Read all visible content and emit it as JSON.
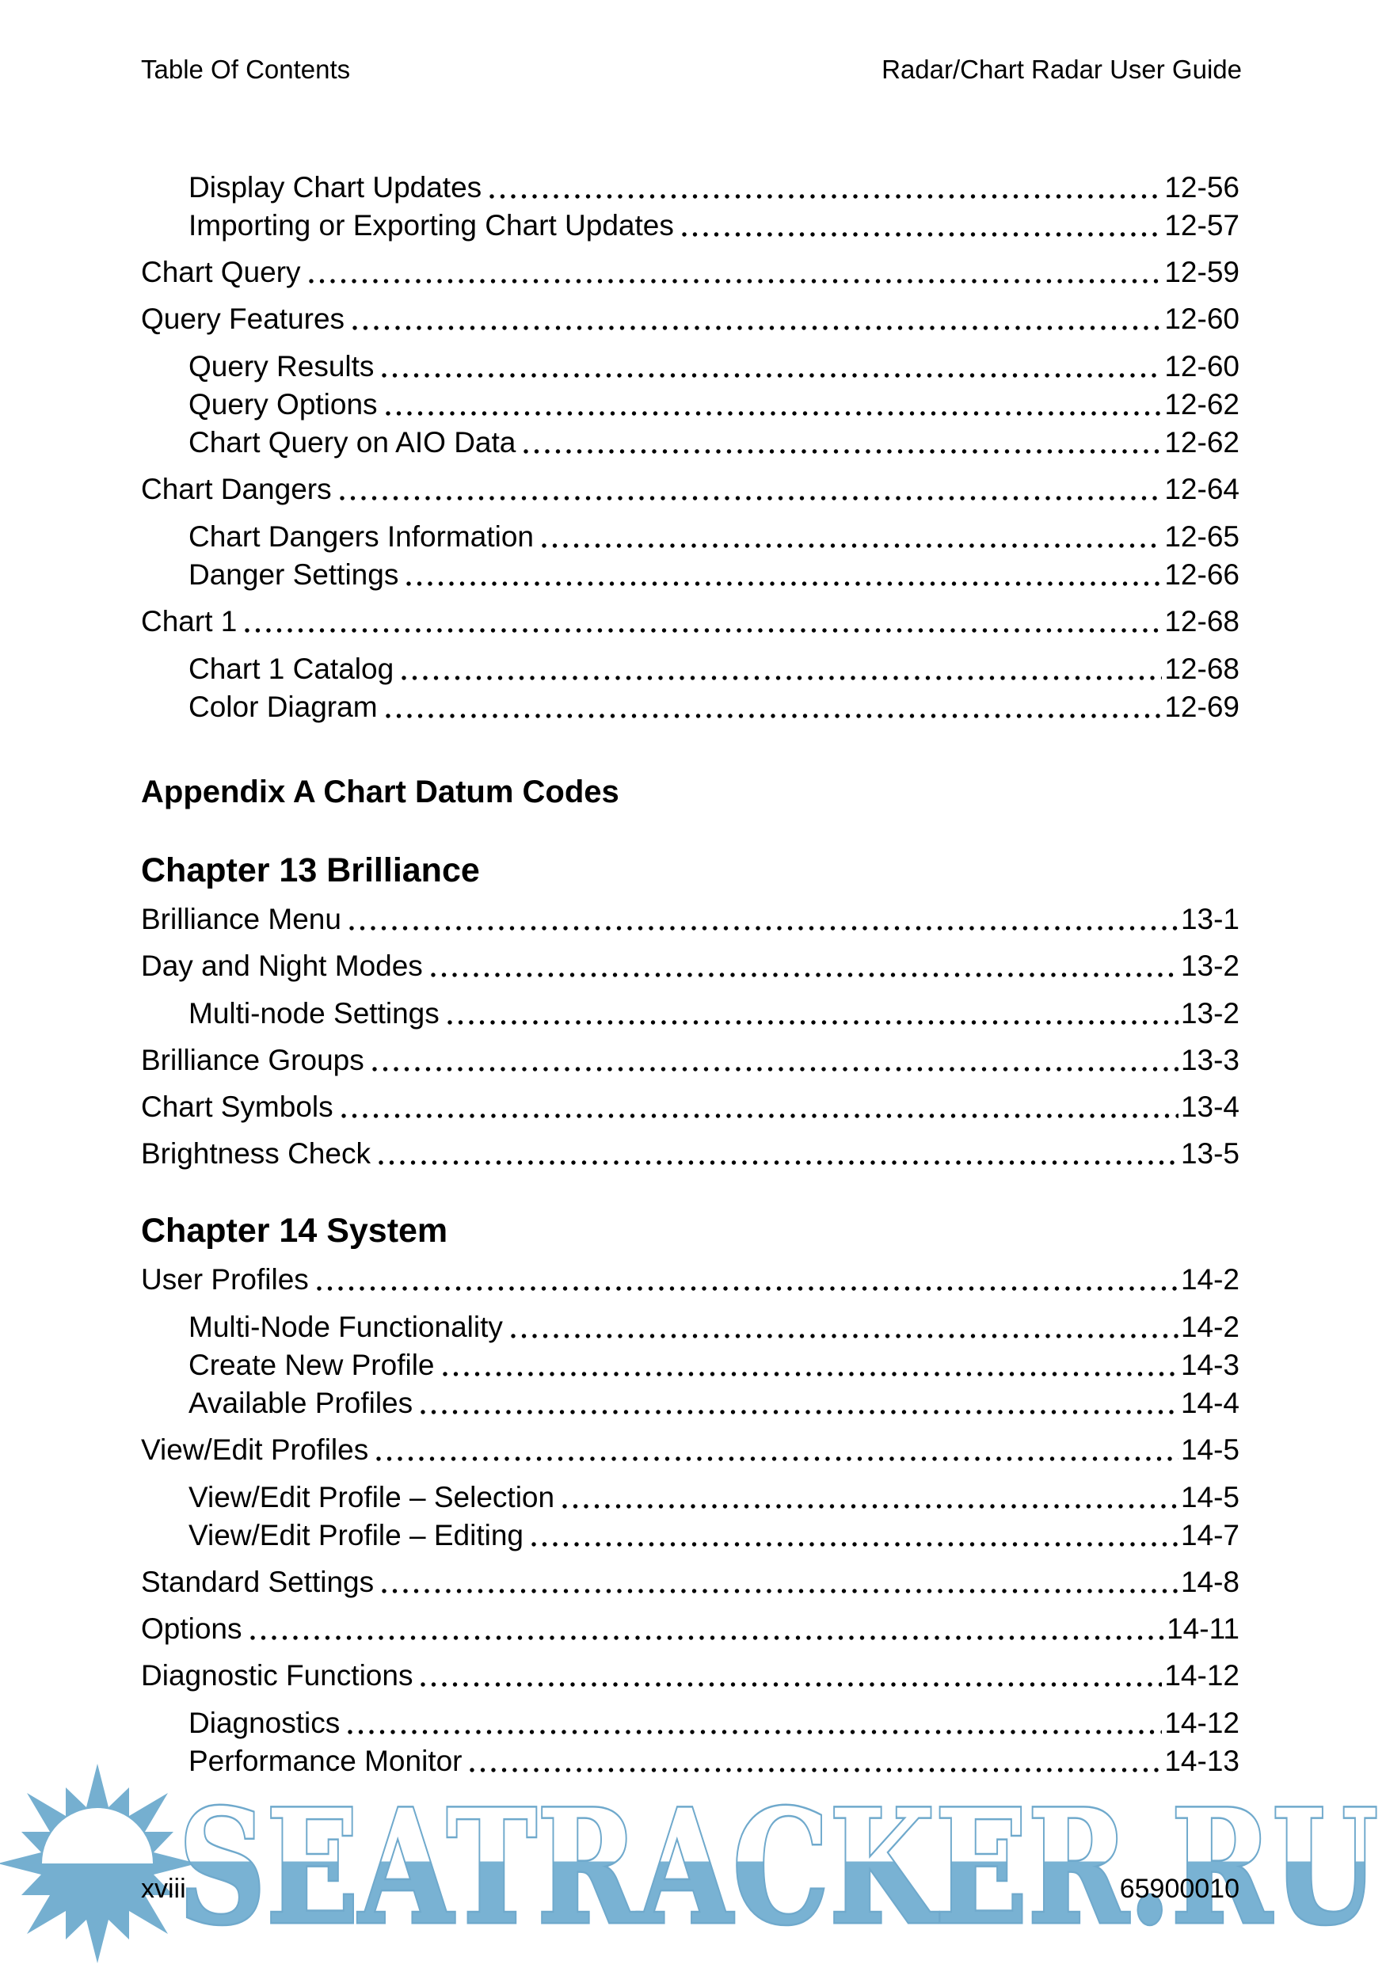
{
  "header": {
    "left": "Table Of Contents",
    "right": "Radar/Chart Radar User Guide"
  },
  "toc": {
    "items": [
      {
        "label": "Display Chart Updates",
        "page": "12-56",
        "level": 2
      },
      {
        "label": "Importing or Exporting Chart Updates",
        "page": "12-57",
        "level": 2
      },
      {
        "label": "Chart Query",
        "page": "12-59",
        "level": 1
      },
      {
        "label": "Query Features",
        "page": "12-60",
        "level": 1
      },
      {
        "label": "Query Results",
        "page": "12-60",
        "level": 2
      },
      {
        "label": "Query Options",
        "page": "12-62",
        "level": 2
      },
      {
        "label": "Chart Query on AIO Data",
        "page": "12-62",
        "level": 2
      },
      {
        "label": "Chart Dangers",
        "page": "12-64",
        "level": 1
      },
      {
        "label": "Chart Dangers Information",
        "page": "12-65",
        "level": 2
      },
      {
        "label": "Danger Settings",
        "page": "12-66",
        "level": 2
      },
      {
        "label": "Chart 1",
        "page": "12-68",
        "level": 1
      },
      {
        "label": "Chart 1 Catalog",
        "page": "12-68",
        "level": 2
      },
      {
        "label": "Color Diagram",
        "page": "12-69",
        "level": 2
      },
      {
        "label": "Appendix A Chart Datum Codes",
        "type": "appendix"
      },
      {
        "label": "Chapter 13 Brilliance",
        "type": "chapter"
      },
      {
        "label": "Brilliance Menu",
        "page": "13-1",
        "level": 1
      },
      {
        "label": "Day and Night Modes",
        "page": "13-2",
        "level": 1
      },
      {
        "label": "Multi-node Settings",
        "page": "13-2",
        "level": 2
      },
      {
        "label": "Brilliance Groups",
        "page": "13-3",
        "level": 1
      },
      {
        "label": "Chart Symbols",
        "page": "13-4",
        "level": 1
      },
      {
        "label": "Brightness Check",
        "page": "13-5",
        "level": 1
      },
      {
        "label": "Chapter 14 System",
        "type": "chapter"
      },
      {
        "label": "User Profiles",
        "page": "14-2",
        "level": 1
      },
      {
        "label": "Multi-Node Functionality",
        "page": "14-2",
        "level": 2
      },
      {
        "label": "Create New Profile",
        "page": "14-3",
        "level": 2
      },
      {
        "label": "Available Profiles",
        "page": "14-4",
        "level": 2
      },
      {
        "label": "View/Edit Profiles",
        "page": "14-5",
        "level": 1
      },
      {
        "label": "View/Edit Profile – Selection",
        "page": "14-5",
        "level": 2
      },
      {
        "label": "View/Edit Profile – Editing",
        "page": "14-7",
        "level": 2
      },
      {
        "label": "Standard Settings",
        "page": "14-8",
        "level": 1
      },
      {
        "label": "Options",
        "page": "14-11",
        "level": 1
      },
      {
        "label": "Diagnostic Functions",
        "page": "14-12",
        "level": 1
      },
      {
        "label": "Diagnostics",
        "page": "14-12",
        "level": 2
      },
      {
        "label": "Performance Monitor",
        "page": "14-13",
        "level": 2
      }
    ]
  },
  "footer": {
    "page_number": "xviii",
    "doc_number": "65900010"
  },
  "watermark": {
    "text": "SEATRACKER.RU",
    "logo": "sun-logo",
    "color_letters": "#79b2d3",
    "color_outline": "#6fa9cc"
  }
}
